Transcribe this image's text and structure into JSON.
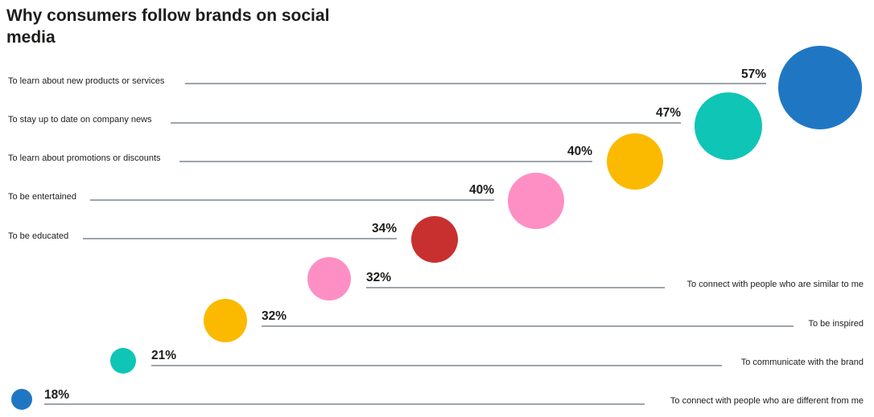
{
  "chart_data": {
    "type": "scatter",
    "title": "Why consumers follow brands on social media",
    "unit": "%",
    "points": [
      {
        "label": "To learn about new products or services",
        "value": 57,
        "value_label": "57%",
        "color": "#1f77c4"
      },
      {
        "label": "To stay up to date on company news",
        "value": 47,
        "value_label": "47%",
        "color": "#0fc5b6"
      },
      {
        "label": "To learn about promotions or discounts",
        "value": 40,
        "value_label": "40%",
        "color": "#fbba00"
      },
      {
        "label": "To be entertained",
        "value": 40,
        "value_label": "40%",
        "color": "#fd8fc4"
      },
      {
        "label": "To be educated",
        "value": 34,
        "value_label": "34%",
        "color": "#c8302f"
      },
      {
        "label": "To connect with people who are similar to me",
        "value": 32,
        "value_label": "32%",
        "color": "#fd8fc4"
      },
      {
        "label": "To be inspired",
        "value": 32,
        "value_label": "32%",
        "color": "#fbba00"
      },
      {
        "label": "To communicate with the brand",
        "value": 21,
        "value_label": "21%",
        "color": "#0fc5b6"
      },
      {
        "label": "To connect with people who are different from me",
        "value": 18,
        "value_label": "18%",
        "color": "#1f77c4"
      }
    ]
  }
}
